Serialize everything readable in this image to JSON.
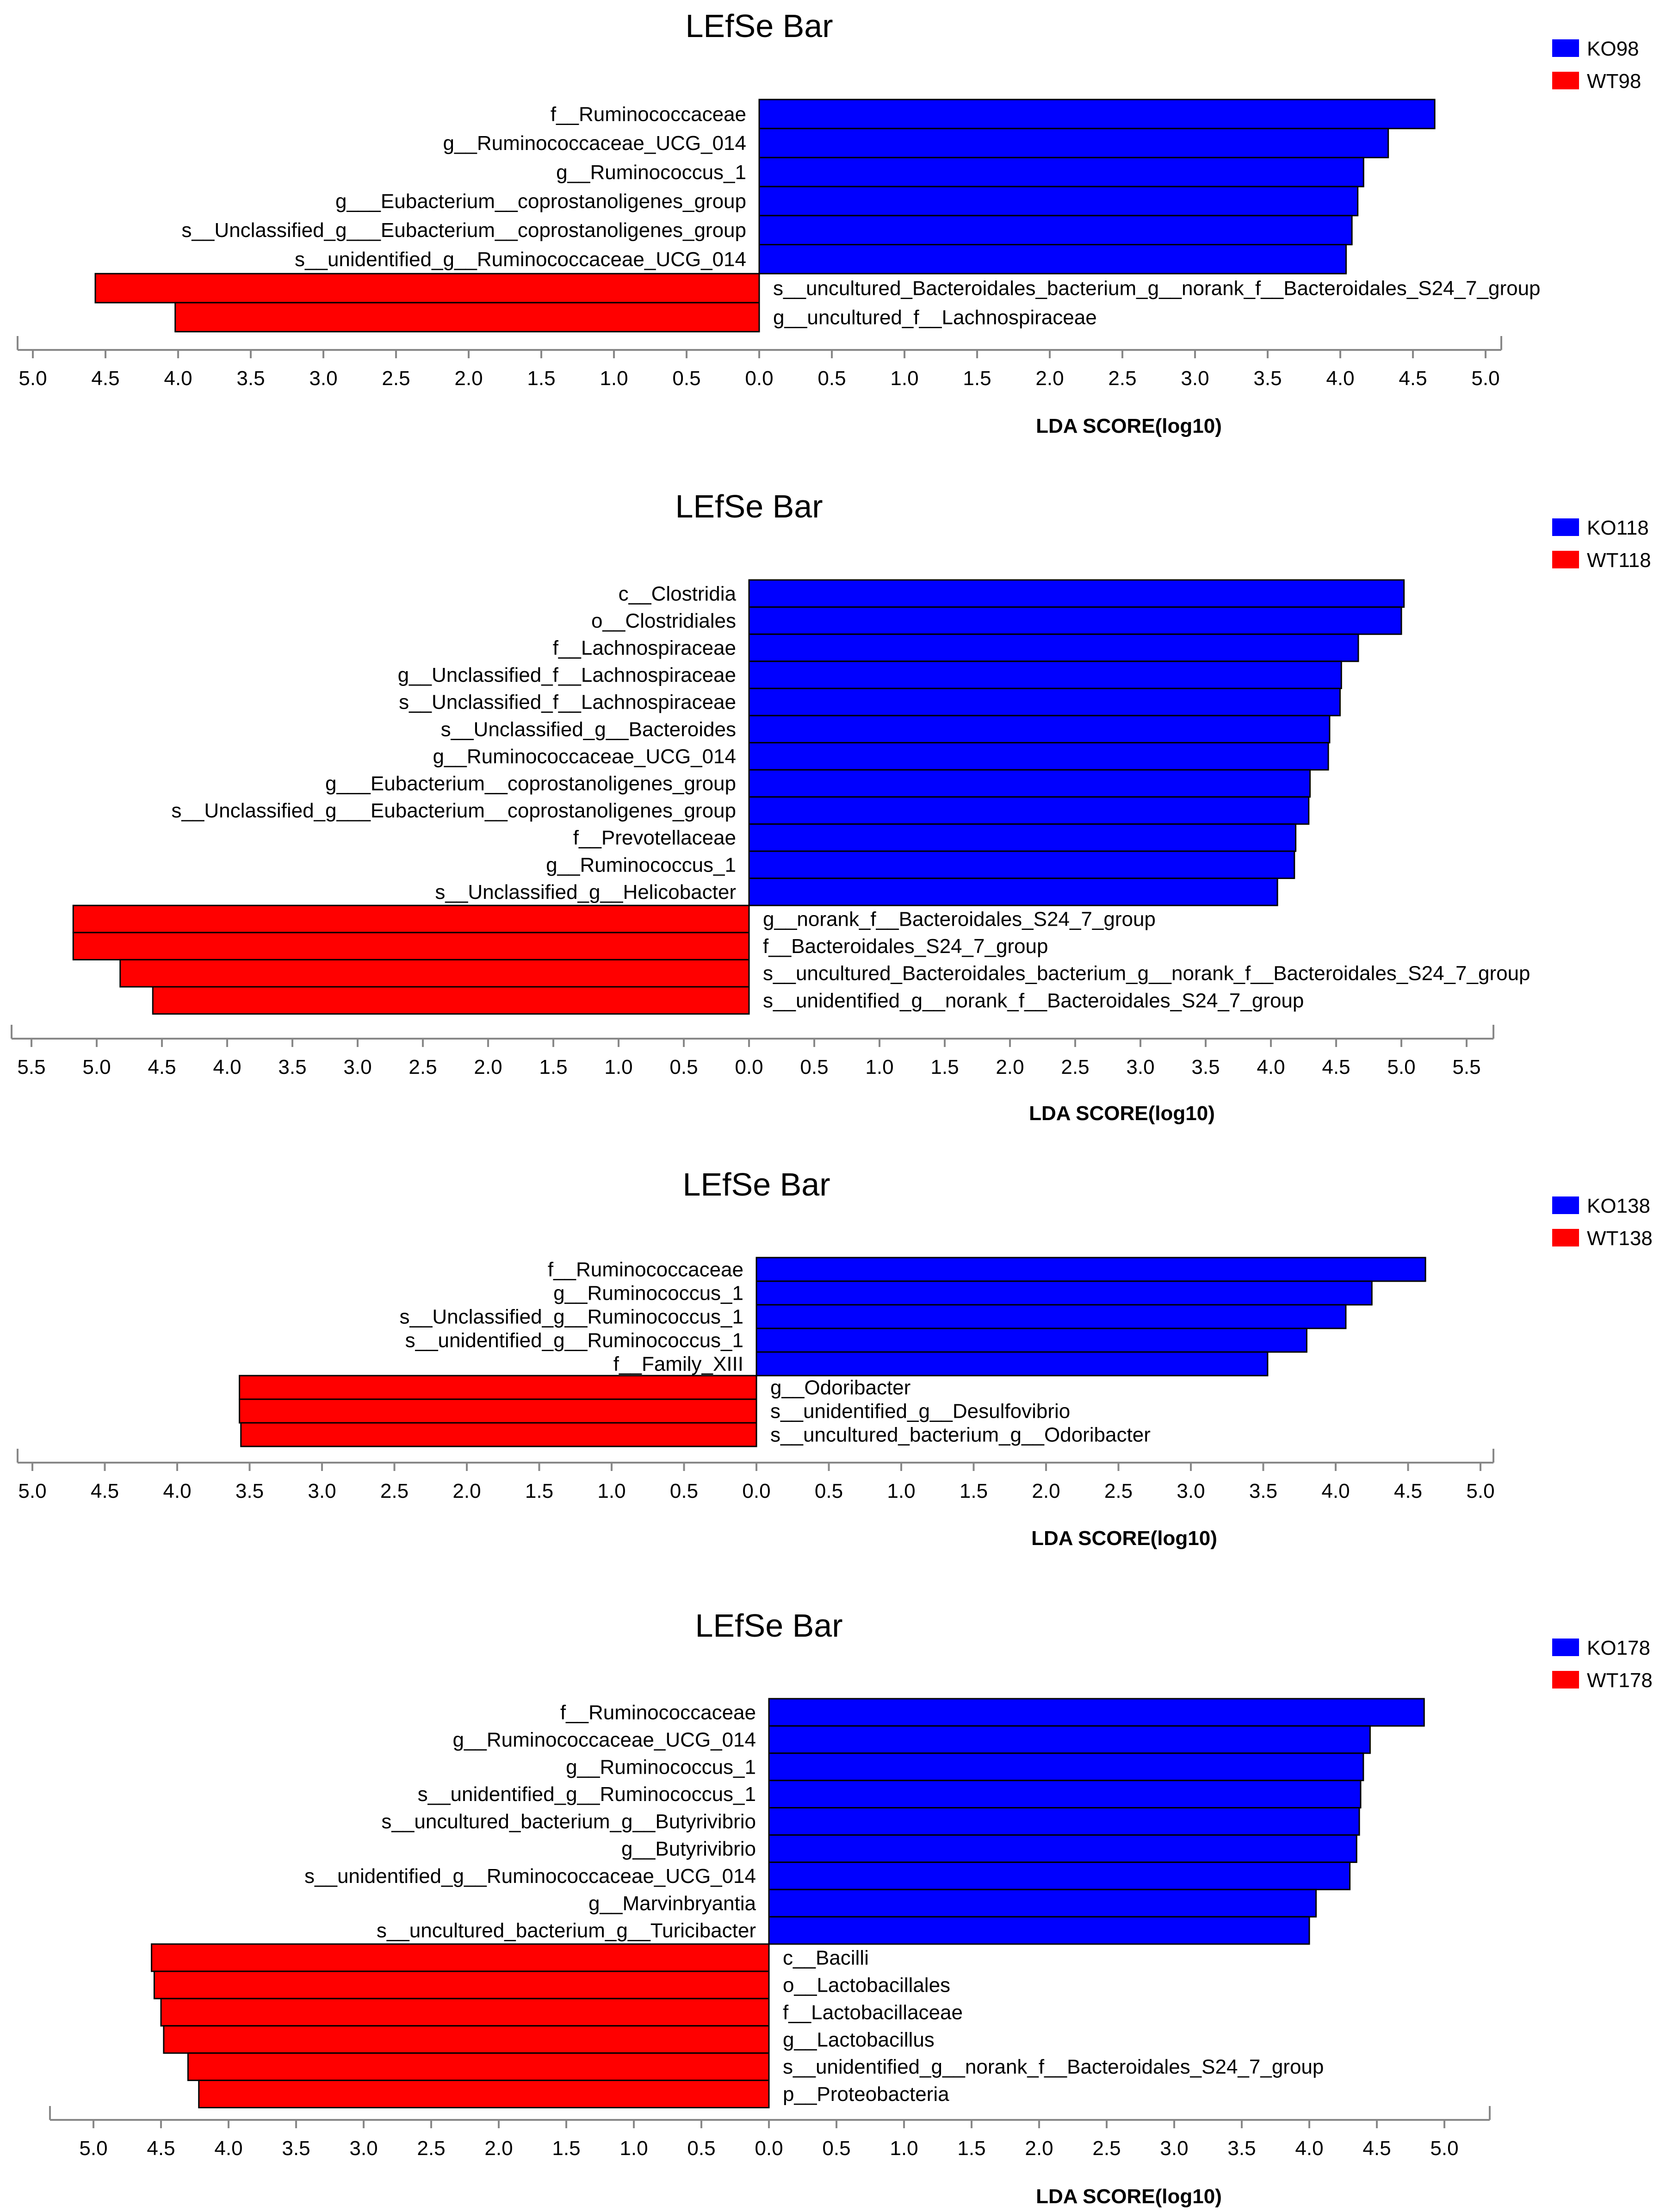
{
  "colors": {
    "ko": "#0000ff",
    "wt": "#ff0000",
    "axis": "#888888",
    "bar_stroke": "#000000"
  },
  "chart_data": [
    {
      "type": "bar",
      "title": "LEfSe Bar",
      "xlabel": "LDA SCORE(log10)",
      "xlim": [
        -5.0,
        5.0
      ],
      "ticks": [
        "5.0",
        "4.5",
        "4.0",
        "3.5",
        "3.0",
        "2.5",
        "2.0",
        "1.5",
        "1.0",
        "0.5",
        "0.0",
        "0.5",
        "1.0",
        "1.5",
        "2.0",
        "2.5",
        "3.0",
        "3.5",
        "4.0",
        "4.5",
        "5.0"
      ],
      "legend": [
        {
          "name": "KO98",
          "color": "#0000ff"
        },
        {
          "name": "WT98",
          "color": "#ff0000"
        }
      ],
      "bars": [
        {
          "label": "f__Ruminococcaceae",
          "group": "KO98",
          "value": 4.65
        },
        {
          "label": "g__Ruminococcaceae_UCG_014",
          "group": "KO98",
          "value": 4.33
        },
        {
          "label": "g__Ruminococcus_1",
          "group": "KO98",
          "value": 4.16
        },
        {
          "label": "g___Eubacterium__coprostanoligenes_group",
          "group": "KO98",
          "value": 4.12
        },
        {
          "label": "s__Unclassified_g___Eubacterium__coprostanoligenes_group",
          "group": "KO98",
          "value": 4.08
        },
        {
          "label": "s__unidentified_g__Ruminococcaceae_UCG_014",
          "group": "KO98",
          "value": 4.04
        },
        {
          "label": "s__uncultured_Bacteroidales_bacterium_g__norank_f__Bacteroidales_S24_7_group",
          "group": "WT98",
          "value": 4.57
        },
        {
          "label": "g__uncultured_f__Lachnospiraceae",
          "group": "WT98",
          "value": 4.02
        }
      ]
    },
    {
      "type": "bar",
      "title": "LEfSe Bar",
      "xlabel": "LDA SCORE(log10)",
      "xlim": [
        -5.5,
        5.5
      ],
      "ticks": [
        "5.5",
        "5.0",
        "4.5",
        "4.0",
        "3.5",
        "3.0",
        "2.5",
        "2.0",
        "1.5",
        "1.0",
        "0.5",
        "0.0",
        "0.5",
        "1.0",
        "1.5",
        "2.0",
        "2.5",
        "3.0",
        "3.5",
        "4.0",
        "4.5",
        "5.0",
        "5.5"
      ],
      "legend": [
        {
          "name": "KO118",
          "color": "#0000ff"
        },
        {
          "name": "WT118",
          "color": "#ff0000"
        }
      ],
      "bars": [
        {
          "label": "c__Clostridia",
          "group": "KO118",
          "value": 5.02
        },
        {
          "label": "o__Clostridiales",
          "group": "KO118",
          "value": 5.0
        },
        {
          "label": "f__Lachnospiraceae",
          "group": "KO118",
          "value": 4.67
        },
        {
          "label": "g__Unclassified_f__Lachnospiraceae",
          "group": "KO118",
          "value": 4.54
        },
        {
          "label": "s__Unclassified_f__Lachnospiraceae",
          "group": "KO118",
          "value": 4.53
        },
        {
          "label": "s__Unclassified_g__Bacteroides",
          "group": "KO118",
          "value": 4.45
        },
        {
          "label": "g__Ruminococcaceae_UCG_014",
          "group": "KO118",
          "value": 4.44
        },
        {
          "label": "g___Eubacterium__coprostanoligenes_group",
          "group": "KO118",
          "value": 4.3
        },
        {
          "label": "s__Unclassified_g___Eubacterium__coprostanoligenes_group",
          "group": "KO118",
          "value": 4.29
        },
        {
          "label": "f__Prevotellaceae",
          "group": "KO118",
          "value": 4.19
        },
        {
          "label": "g__Ruminococcus_1",
          "group": "KO118",
          "value": 4.18
        },
        {
          "label": "s__Unclassified_g__Helicobacter",
          "group": "KO118",
          "value": 4.05
        },
        {
          "label": "g__norank_f__Bacteroidales_S24_7_group",
          "group": "WT118",
          "value": 5.18
        },
        {
          "label": "f__Bacteroidales_S24_7_group",
          "group": "WT118",
          "value": 5.18
        },
        {
          "label": "s__uncultured_Bacteroidales_bacterium_g__norank_f__Bacteroidales_S24_7_group",
          "group": "WT118",
          "value": 4.82
        },
        {
          "label": "s__unidentified_g__norank_f__Bacteroidales_S24_7_group",
          "group": "WT118",
          "value": 4.57
        }
      ]
    },
    {
      "type": "bar",
      "title": "LEfSe Bar",
      "xlabel": "LDA SCORE(log10)",
      "xlim": [
        -5.0,
        5.0
      ],
      "ticks": [
        "5.0",
        "4.5",
        "4.0",
        "3.5",
        "3.0",
        "2.5",
        "2.0",
        "1.5",
        "1.0",
        "0.5",
        "0.0",
        "0.5",
        "1.0",
        "1.5",
        "2.0",
        "2.5",
        "3.0",
        "3.5",
        "4.0",
        "4.5",
        "5.0"
      ],
      "legend": [
        {
          "name": "KO138",
          "color": "#0000ff"
        },
        {
          "name": "WT138",
          "color": "#ff0000"
        }
      ],
      "bars": [
        {
          "label": "f__Ruminococcaceae",
          "group": "KO138",
          "value": 4.62
        },
        {
          "label": "g__Ruminococcus_1",
          "group": "KO138",
          "value": 4.25
        },
        {
          "label": "s__Unclassified_g__Ruminococcus_1",
          "group": "KO138",
          "value": 4.07
        },
        {
          "label": "s__unidentified_g__Ruminococcus_1",
          "group": "KO138",
          "value": 3.8
        },
        {
          "label": "f__Family_XIII",
          "group": "KO138",
          "value": 3.53
        },
        {
          "label": "g__Odoribacter",
          "group": "WT138",
          "value": 3.57
        },
        {
          "label": "s__unidentified_g__Desulfovibrio",
          "group": "WT138",
          "value": 3.57
        },
        {
          "label": "s__uncultured_bacterium_g__Odoribacter",
          "group": "WT138",
          "value": 3.56
        }
      ]
    },
    {
      "type": "bar",
      "title": "LEfSe Bar",
      "xlabel": "LDA SCORE(log10)",
      "xlim": [
        -5.0,
        5.0
      ],
      "ticks": [
        "5.0",
        "4.5",
        "4.0",
        "3.5",
        "3.0",
        "2.5",
        "2.0",
        "1.5",
        "1.0",
        "0.5",
        "0.0",
        "0.5",
        "1.0",
        "1.5",
        "2.0",
        "2.5",
        "3.0",
        "3.5",
        "4.0",
        "4.5",
        "5.0"
      ],
      "legend": [
        {
          "name": "KO178",
          "color": "#0000ff"
        },
        {
          "name": "WT178",
          "color": "#ff0000"
        }
      ],
      "bars": [
        {
          "label": "f__Ruminococcaceae",
          "group": "KO178",
          "value": 4.85
        },
        {
          "label": "g__Ruminococcaceae_UCG_014",
          "group": "KO178",
          "value": 4.45
        },
        {
          "label": "g__Ruminococcus_1",
          "group": "KO178",
          "value": 4.4
        },
        {
          "label": "s__unidentified_g__Ruminococcus_1",
          "group": "KO178",
          "value": 4.38
        },
        {
          "label": "s__uncultured_bacterium_g__Butyrivibrio",
          "group": "KO178",
          "value": 4.37
        },
        {
          "label": "g__Butyrivibrio",
          "group": "KO178",
          "value": 4.35
        },
        {
          "label": "s__unidentified_g__Ruminococcaceae_UCG_014",
          "group": "KO178",
          "value": 4.3
        },
        {
          "label": "g__Marvinbryantia",
          "group": "KO178",
          "value": 4.05
        },
        {
          "label": "s__uncultured_bacterium_g__Turicibacter",
          "group": "KO178",
          "value": 4.0
        },
        {
          "label": "c__Bacilli",
          "group": "WT178",
          "value": 4.57
        },
        {
          "label": "o__Lactobacillales",
          "group": "WT178",
          "value": 4.55
        },
        {
          "label": "f__Lactobacillaceae",
          "group": "WT178",
          "value": 4.5
        },
        {
          "label": "g__Lactobacillus",
          "group": "WT178",
          "value": 4.48
        },
        {
          "label": "s__unidentified_g__norank_f__Bacteroidales_S24_7_group",
          "group": "WT178",
          "value": 4.3
        },
        {
          "label": "p__Proteobacteria",
          "group": "WT178",
          "value": 4.22
        }
      ]
    }
  ]
}
